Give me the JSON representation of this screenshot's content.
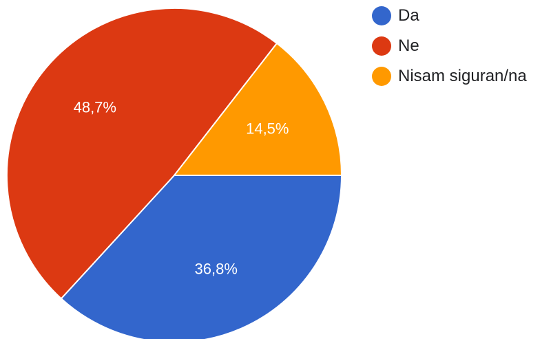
{
  "chart_data": {
    "type": "pie",
    "title": "",
    "legend_position": "right",
    "series": [
      {
        "categories": [
          "Da",
          "Ne",
          "Nisam siguran/na"
        ],
        "values": [
          36.8,
          48.7,
          14.5
        ],
        "labels": [
          "36,8%",
          "48,7%",
          "14,5%"
        ],
        "colors": [
          "#3366cc",
          "#dc3912",
          "#ff9900"
        ]
      }
    ]
  }
}
